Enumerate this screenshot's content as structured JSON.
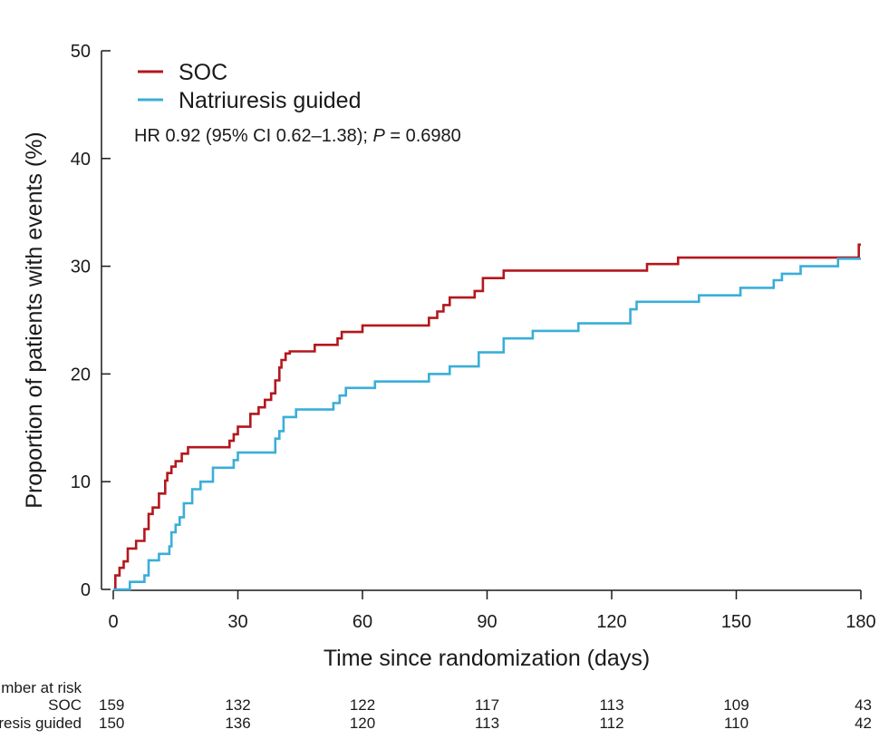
{
  "chart_data": {
    "type": "line",
    "step": true,
    "xlabel": "Time since randomization (days)",
    "ylabel": "Proportion of patients with events (%)",
    "xlim": [
      0,
      180
    ],
    "ylim": [
      0,
      50
    ],
    "xticks": [
      "0",
      "30",
      "60",
      "90",
      "120",
      "150",
      "180"
    ],
    "yticks": [
      "0",
      "10",
      "20",
      "30",
      "40",
      "50"
    ],
    "grid": false,
    "legend_position": "top-left",
    "annotation": {
      "prefix": "HR 0.92 (95% CI 0.62–1.38); ",
      "p_label": "P",
      "p_value": " = 0.6980"
    },
    "series": [
      {
        "name": "SOC",
        "color": "#b3171d",
        "x": [
          0,
          0.5,
          1.5,
          2.5,
          3.5,
          5.5,
          7.5,
          8.5,
          9.5,
          11,
          12.5,
          13,
          14,
          15,
          16.5,
          18,
          28,
          29,
          30,
          33,
          35,
          36.5,
          38,
          39,
          40,
          40.5,
          41.5,
          42.5,
          48.5,
          54,
          55,
          60,
          76,
          78,
          79.5,
          81,
          87,
          89,
          94,
          128.5,
          136,
          179.5
        ],
        "y": [
          0,
          1.3,
          2.0,
          2.6,
          3.8,
          4.5,
          5.6,
          7.0,
          7.6,
          8.9,
          10.1,
          10.8,
          11.4,
          11.9,
          12.6,
          13.2,
          13.8,
          14.4,
          15.1,
          16.3,
          16.9,
          17.6,
          18.2,
          19.4,
          20.6,
          21.3,
          21.9,
          22.1,
          22.7,
          23.3,
          23.9,
          24.5,
          25.2,
          25.8,
          26.4,
          27.1,
          27.7,
          28.9,
          29.6,
          30.2,
          30.8,
          32.0
        ]
      },
      {
        "name": "Natriuresis guided",
        "color": "#3aaed8",
        "x": [
          0,
          4,
          7.5,
          8.5,
          11,
          13.5,
          14,
          15,
          16,
          17,
          19,
          21,
          24,
          29,
          30,
          39,
          40,
          41,
          44,
          53,
          54.5,
          56,
          63,
          76,
          81,
          88,
          94,
          101,
          112,
          124.5,
          126,
          141,
          151,
          159,
          161,
          165.5,
          174.5
        ],
        "y": [
          0,
          0.7,
          1.3,
          2.7,
          3.3,
          4.0,
          5.3,
          6.0,
          6.7,
          8.0,
          9.3,
          10.0,
          11.3,
          12.0,
          12.7,
          14.0,
          14.7,
          16.0,
          16.7,
          17.3,
          18.0,
          18.7,
          19.3,
          20.0,
          20.7,
          22.0,
          23.3,
          24.0,
          24.7,
          26.0,
          26.7,
          27.3,
          28.0,
          28.7,
          29.3,
          30.0,
          30.7
        ]
      }
    ],
    "number_at_risk": {
      "title": "Number at risk",
      "times": [
        0,
        30,
        60,
        90,
        120,
        150,
        180
      ],
      "rows": [
        {
          "label": "SOC",
          "values": [
            "159",
            "132",
            "122",
            "117",
            "113",
            "109",
            "43"
          ]
        },
        {
          "label": "Natriuresis guided",
          "values": [
            "150",
            "136",
            "120",
            "113",
            "112",
            "110",
            "42"
          ]
        }
      ]
    }
  }
}
